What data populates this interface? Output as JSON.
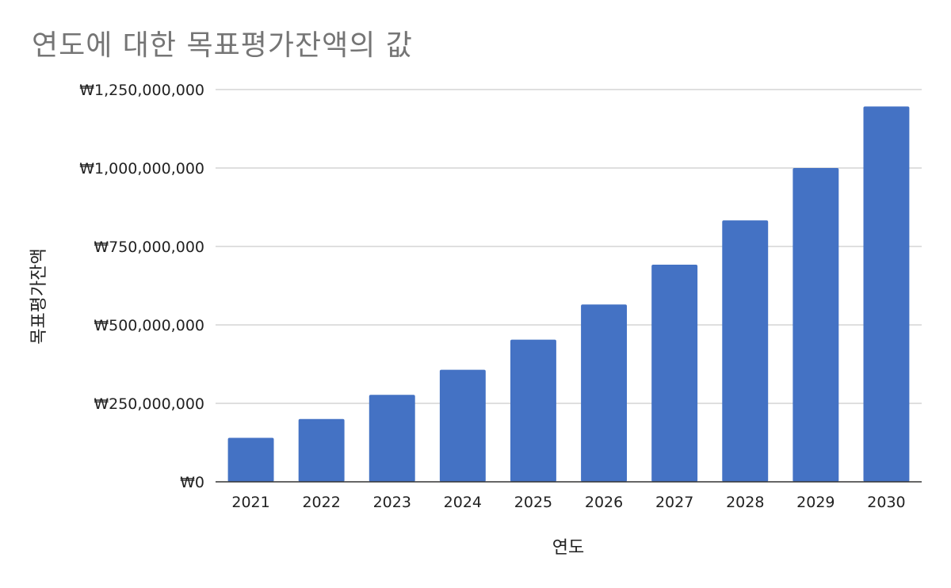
{
  "chart_data": {
    "type": "bar",
    "title": "연도에 대한 목표평가잔액의 값",
    "xlabel": "연도",
    "ylabel": "목표평가잔액",
    "categories": [
      "2021",
      "2022",
      "2023",
      "2024",
      "2025",
      "2026",
      "2027",
      "2028",
      "2029",
      "2030"
    ],
    "values": [
      140000000,
      200000000,
      277000000,
      357000000,
      453000000,
      565000000,
      692000000,
      833000000,
      1000000000,
      1196000000
    ],
    "ylim": [
      0,
      1250000000
    ],
    "yticks": [
      0,
      250000000,
      500000000,
      750000000,
      1000000000,
      1250000000
    ],
    "ytick_labels": [
      "₩0",
      "₩250,000,000",
      "₩500,000,000",
      "₩750,000,000",
      "₩1,000,000,000",
      "₩1,250,000,000"
    ],
    "grid": true,
    "bar_color": "#4472c4"
  }
}
